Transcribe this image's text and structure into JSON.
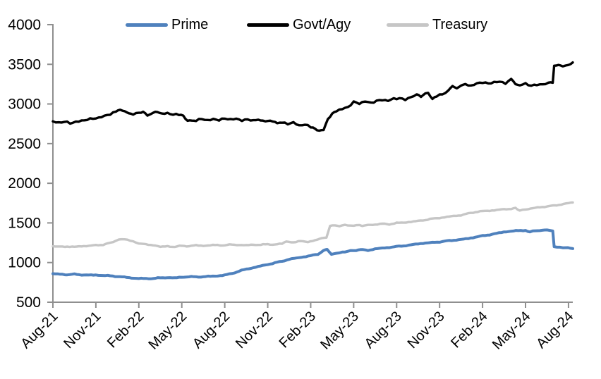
{
  "chart_data": {
    "type": "line",
    "title": "",
    "xlabel": "",
    "ylabel": "",
    "ylim": [
      500,
      4000
    ],
    "yticks": [
      500,
      1000,
      1500,
      2000,
      2500,
      3000,
      3500,
      4000
    ],
    "x_tick_labels": [
      "Aug-21",
      "Nov-21",
      "Feb-22",
      "May-22",
      "Aug-22",
      "Nov-22",
      "Feb-23",
      "May-23",
      "Aug-23",
      "Nov-23",
      "Feb-24",
      "May-24",
      "Aug-24"
    ],
    "x_unit": "months since Aug-2021",
    "x_range": [
      0,
      36.3
    ],
    "x_tick_step_months": 3,
    "grid": false,
    "legend_position": "top",
    "axis_color": "#8f8f8f",
    "text_color": "#000000",
    "series": [
      {
        "name": "Prime",
        "color": "#4F81BD",
        "line_width": 4,
        "noise_amplitude": 6,
        "points": [
          [
            0,
            860
          ],
          [
            0.5,
            852
          ],
          [
            1,
            848
          ],
          [
            1.5,
            852
          ],
          [
            2,
            846
          ],
          [
            2.5,
            842
          ],
          [
            3,
            842
          ],
          [
            3.5,
            838
          ],
          [
            4,
            832
          ],
          [
            4.5,
            825
          ],
          [
            5,
            815
          ],
          [
            5.5,
            806
          ],
          [
            6,
            800
          ],
          [
            6.5,
            797
          ],
          [
            7,
            800
          ],
          [
            7.5,
            806
          ],
          [
            8,
            812
          ],
          [
            8.5,
            806
          ],
          [
            9,
            816
          ],
          [
            9.5,
            822
          ],
          [
            10,
            818
          ],
          [
            10.5,
            822
          ],
          [
            11,
            826
          ],
          [
            11.5,
            832
          ],
          [
            12,
            842
          ],
          [
            12.5,
            862
          ],
          [
            13,
            892
          ],
          [
            13.5,
            916
          ],
          [
            14,
            936
          ],
          [
            14.5,
            956
          ],
          [
            15,
            976
          ],
          [
            15.5,
            996
          ],
          [
            16,
            1016
          ],
          [
            16.5,
            1042
          ],
          [
            17,
            1056
          ],
          [
            17.5,
            1072
          ],
          [
            18,
            1086
          ],
          [
            18.5,
            1105
          ],
          [
            18.9,
            1152
          ],
          [
            19.15,
            1168
          ],
          [
            19.45,
            1098
          ],
          [
            19.8,
            1118
          ],
          [
            20.2,
            1132
          ],
          [
            20.6,
            1142
          ],
          [
            21,
            1152
          ],
          [
            21.5,
            1162
          ],
          [
            22,
            1155
          ],
          [
            22.5,
            1172
          ],
          [
            23,
            1182
          ],
          [
            23.5,
            1192
          ],
          [
            24,
            1202
          ],
          [
            24.5,
            1212
          ],
          [
            25,
            1222
          ],
          [
            25.5,
            1236
          ],
          [
            26,
            1246
          ],
          [
            26.5,
            1252
          ],
          [
            27,
            1262
          ],
          [
            27.5,
            1272
          ],
          [
            28,
            1282
          ],
          [
            28.5,
            1292
          ],
          [
            29,
            1302
          ],
          [
            29.5,
            1322
          ],
          [
            30,
            1336
          ],
          [
            30.5,
            1352
          ],
          [
            31,
            1368
          ],
          [
            31.5,
            1386
          ],
          [
            32,
            1396
          ],
          [
            32.5,
            1402
          ],
          [
            33,
            1408
          ],
          [
            33.3,
            1386
          ],
          [
            33.7,
            1402
          ],
          [
            34,
            1406
          ],
          [
            34.5,
            1412
          ],
          [
            34.9,
            1402
          ],
          [
            35,
            1198
          ],
          [
            35.4,
            1192
          ],
          [
            35.8,
            1188
          ],
          [
            36.3,
            1176
          ]
        ]
      },
      {
        "name": "Govt/Agy",
        "color": "#000000",
        "line_width": 3.4,
        "noise_amplitude": 14,
        "points": [
          [
            0,
            2780
          ],
          [
            0.4,
            2762
          ],
          [
            0.8,
            2772
          ],
          [
            1.2,
            2756
          ],
          [
            1.6,
            2776
          ],
          [
            2,
            2792
          ],
          [
            2.4,
            2806
          ],
          [
            2.8,
            2812
          ],
          [
            3.2,
            2822
          ],
          [
            3.6,
            2848
          ],
          [
            4,
            2876
          ],
          [
            4.4,
            2906
          ],
          [
            4.7,
            2932
          ],
          [
            5,
            2912
          ],
          [
            5.3,
            2892
          ],
          [
            5.6,
            2872
          ],
          [
            6,
            2886
          ],
          [
            6.3,
            2902
          ],
          [
            6.6,
            2862
          ],
          [
            7,
            2882
          ],
          [
            7.3,
            2898
          ],
          [
            7.6,
            2872
          ],
          [
            8,
            2882
          ],
          [
            8.4,
            2868
          ],
          [
            8.8,
            2872
          ],
          [
            9.1,
            2858
          ],
          [
            9.4,
            2792
          ],
          [
            9.7,
            2802
          ],
          [
            10,
            2786
          ],
          [
            10.4,
            2812
          ],
          [
            10.8,
            2796
          ],
          [
            11.2,
            2812
          ],
          [
            11.6,
            2798
          ],
          [
            12,
            2812
          ],
          [
            12.4,
            2802
          ],
          [
            12.8,
            2812
          ],
          [
            13.2,
            2798
          ],
          [
            13.6,
            2806
          ],
          [
            14,
            2790
          ],
          [
            14.5,
            2800
          ],
          [
            15,
            2782
          ],
          [
            15.5,
            2772
          ],
          [
            16,
            2766
          ],
          [
            16.4,
            2748
          ],
          [
            16.8,
            2760
          ],
          [
            17.2,
            2726
          ],
          [
            17.6,
            2744
          ],
          [
            18,
            2714
          ],
          [
            18.3,
            2694
          ],
          [
            18.6,
            2666
          ],
          [
            18.9,
            2684
          ],
          [
            19.2,
            2812
          ],
          [
            19.5,
            2882
          ],
          [
            19.8,
            2914
          ],
          [
            20.2,
            2942
          ],
          [
            20.6,
            2962
          ],
          [
            21,
            3022
          ],
          [
            21.4,
            3002
          ],
          [
            21.8,
            3032
          ],
          [
            22.2,
            3016
          ],
          [
            22.6,
            3042
          ],
          [
            23,
            3052
          ],
          [
            23.4,
            3038
          ],
          [
            23.8,
            3062
          ],
          [
            24.2,
            3072
          ],
          [
            24.6,
            3058
          ],
          [
            25,
            3092
          ],
          [
            25.4,
            3112
          ],
          [
            25.7,
            3088
          ],
          [
            26,
            3122
          ],
          [
            26.2,
            3142
          ],
          [
            26.5,
            3072
          ],
          [
            26.8,
            3102
          ],
          [
            27.2,
            3128
          ],
          [
            27.6,
            3162
          ],
          [
            27.9,
            3222
          ],
          [
            28.2,
            3192
          ],
          [
            28.5,
            3232
          ],
          [
            28.8,
            3252
          ],
          [
            29.2,
            3232
          ],
          [
            29.6,
            3262
          ],
          [
            30,
            3272
          ],
          [
            30.4,
            3252
          ],
          [
            30.8,
            3272
          ],
          [
            31.2,
            3282
          ],
          [
            31.6,
            3266
          ],
          [
            32,
            3312
          ],
          [
            32.3,
            3252
          ],
          [
            32.6,
            3232
          ],
          [
            33,
            3252
          ],
          [
            33.4,
            3232
          ],
          [
            33.8,
            3246
          ],
          [
            34.2,
            3252
          ],
          [
            34.6,
            3258
          ],
          [
            34.9,
            3268
          ],
          [
            35,
            3482
          ],
          [
            35.3,
            3492
          ],
          [
            35.6,
            3472
          ],
          [
            36,
            3502
          ],
          [
            36.3,
            3524
          ]
        ]
      },
      {
        "name": "Treasury",
        "color": "#C6C6C6",
        "line_width": 3.4,
        "noise_amplitude": 7,
        "points": [
          [
            0,
            1205
          ],
          [
            0.5,
            1198
          ],
          [
            1,
            1203
          ],
          [
            1.5,
            1197
          ],
          [
            2,
            1206
          ],
          [
            2.5,
            1212
          ],
          [
            3,
            1217
          ],
          [
            3.5,
            1227
          ],
          [
            4,
            1247
          ],
          [
            4.4,
            1278
          ],
          [
            4.8,
            1298
          ],
          [
            5.2,
            1288
          ],
          [
            5.6,
            1262
          ],
          [
            6,
            1242
          ],
          [
            6.5,
            1227
          ],
          [
            7,
            1222
          ],
          [
            7.5,
            1197
          ],
          [
            8,
            1207
          ],
          [
            8.5,
            1197
          ],
          [
            9,
            1212
          ],
          [
            9.5,
            1207
          ],
          [
            10,
            1217
          ],
          [
            10.5,
            1212
          ],
          [
            11,
            1217
          ],
          [
            11.5,
            1222
          ],
          [
            12,
            1217
          ],
          [
            12.5,
            1227
          ],
          [
            13,
            1222
          ],
          [
            13.5,
            1217
          ],
          [
            14,
            1227
          ],
          [
            14.5,
            1222
          ],
          [
            15,
            1232
          ],
          [
            15.5,
            1227
          ],
          [
            16,
            1237
          ],
          [
            16.3,
            1262
          ],
          [
            16.8,
            1258
          ],
          [
            17.3,
            1268
          ],
          [
            17.8,
            1263
          ],
          [
            18.3,
            1278
          ],
          [
            18.8,
            1308
          ],
          [
            19.1,
            1318
          ],
          [
            19.35,
            1458
          ],
          [
            19.7,
            1472
          ],
          [
            20,
            1462
          ],
          [
            20.4,
            1478
          ],
          [
            20.8,
            1464
          ],
          [
            21.2,
            1472
          ],
          [
            21.6,
            1462
          ],
          [
            22,
            1474
          ],
          [
            22.5,
            1480
          ],
          [
            23,
            1488
          ],
          [
            23.5,
            1484
          ],
          [
            24,
            1498
          ],
          [
            24.5,
            1504
          ],
          [
            25,
            1514
          ],
          [
            25.5,
            1524
          ],
          [
            26,
            1538
          ],
          [
            26.5,
            1552
          ],
          [
            27,
            1564
          ],
          [
            27.5,
            1574
          ],
          [
            28,
            1588
          ],
          [
            28.5,
            1598
          ],
          [
            29,
            1618
          ],
          [
            29.5,
            1638
          ],
          [
            30,
            1648
          ],
          [
            30.5,
            1654
          ],
          [
            31,
            1664
          ],
          [
            31.5,
            1670
          ],
          [
            32,
            1680
          ],
          [
            32.3,
            1690
          ],
          [
            32.6,
            1656
          ],
          [
            33,
            1670
          ],
          [
            33.5,
            1684
          ],
          [
            34,
            1698
          ],
          [
            34.5,
            1708
          ],
          [
            35,
            1718
          ],
          [
            35.5,
            1734
          ],
          [
            36,
            1748
          ],
          [
            36.3,
            1758
          ]
        ]
      }
    ]
  }
}
